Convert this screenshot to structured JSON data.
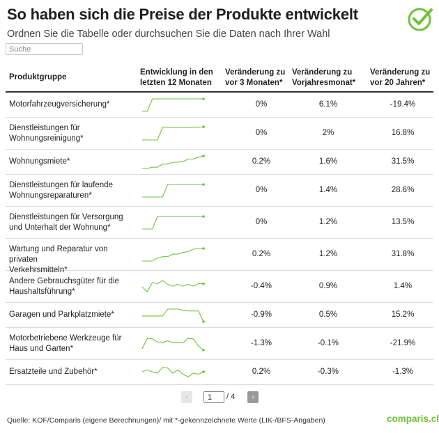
{
  "header": {
    "title": "So haben sich die Preise der Produkte entwickelt",
    "subtitle": "Ordnen Sie die Tabelle oder durchsuchen Sie die Daten nach Ihrer Wahl",
    "logo_icon": "checkmark-circle-icon",
    "accent_color": "#6fc13a"
  },
  "search": {
    "placeholder": "Suche",
    "value": ""
  },
  "table": {
    "columns": [
      {
        "line1": "Produktgruppe",
        "line2": ""
      },
      {
        "line1": "Entwicklung in den",
        "line2": "letzten 12 Monaten"
      },
      {
        "line1": "Veränderung zu",
        "line2": "vor 3 Monaten*"
      },
      {
        "line1": "Veränderung zu",
        "line2": "Vorjahresmonat*"
      },
      {
        "line1": "Veränderung zu",
        "line2": "vor 20 Jahren*"
      }
    ],
    "rows": [
      {
        "name1": "Motorfahrzeugversicherung*",
        "name2": "",
        "m3": "0%",
        "yoy": "6.1%",
        "y20": "-19.4%",
        "trend": [
          0,
          0,
          1,
          1,
          1,
          1,
          1,
          1,
          1,
          1,
          1,
          1,
          1
        ]
      },
      {
        "name1": "Dienstleistungen für",
        "name2": "Wohnungsreinigung*",
        "m3": "0%",
        "yoy": "2%",
        "y20": "16.8%",
        "trend": [
          0,
          0,
          0,
          0,
          1,
          1,
          1,
          1,
          1,
          1,
          1,
          1,
          1.05
        ]
      },
      {
        "name1": "Wohnungsmiete*",
        "name2": "",
        "m3": "0.2%",
        "yoy": "1.6%",
        "y20": "31.5%",
        "trend": [
          0,
          0,
          0.1,
          0.1,
          0.35,
          0.35,
          0.5,
          0.5,
          0.55,
          0.75,
          0.75,
          0.9,
          1
        ]
      },
      {
        "name1": "Dienstleistungen für laufende",
        "name2": "Wohnungsreparaturen*",
        "m3": "0%",
        "yoy": "1.4%",
        "y20": "28.6%",
        "trend": [
          0,
          0,
          0,
          0,
          0,
          1,
          1,
          1,
          1,
          1,
          1,
          1,
          1
        ]
      },
      {
        "name1": "Dienstleistungen für Versorgung",
        "name2": "und Unterhalt der Wohnung*",
        "m3": "0%",
        "yoy": "1.2%",
        "y20": "13.5%",
        "trend": [
          0,
          0,
          0,
          1,
          1,
          1,
          1,
          1,
          1,
          1,
          1,
          1,
          1
        ]
      },
      {
        "name1": "Wartung und Reparatur von privaten",
        "name2": "Verkehrsmitteln*",
        "m3": "0.2%",
        "yoy": "1.2%",
        "y20": "31.8%",
        "trend": [
          0,
          0,
          0,
          0.25,
          0.35,
          0.35,
          0.55,
          0.55,
          0.7,
          0.75,
          0.95,
          1,
          1
        ]
      },
      {
        "name1": "Andere Gebrauchsgüter für die",
        "name2": "Haushaltsführung*",
        "m3": "-0.4%",
        "yoy": "0.9%",
        "y20": "1.4%",
        "trend": [
          0.5,
          0.1,
          0.85,
          0.75,
          1,
          0.7,
          0.55,
          0.7,
          0.55,
          0.7,
          0.55,
          0.75,
          0.75
        ]
      },
      {
        "name1": "Garagen und Parkplatzmiete*",
        "name2": "",
        "m3": "-0.9%",
        "yoy": "0.5%",
        "y20": "15.2%",
        "trend": [
          0.45,
          0.45,
          0.45,
          0.45,
          0.45,
          1,
          1,
          1,
          0.9,
          0.85,
          0.85,
          0.85,
          0
        ]
      },
      {
        "name1": "Motorbetriebene Werkzeuge für",
        "name2": "Haus und Garten*",
        "m3": "-1.3%",
        "yoy": "-0.1%",
        "y20": "-21.9%",
        "trend": [
          0.1,
          0.95,
          0.9,
          0.65,
          0.6,
          0.75,
          0.6,
          0.65,
          0.6,
          0.95,
          0.9,
          0.35,
          0
        ]
      },
      {
        "name1": "Ersatzteile und Zubehör*",
        "name2": "",
        "m3": "0.2%",
        "yoy": "-0.3%",
        "y20": "-1.3%",
        "trend": [
          0.55,
          0.7,
          0.55,
          0.45,
          0.9,
          0.85,
          0.45,
          0.7,
          0.35,
          0.15,
          0.45,
          0.35,
          0.55
        ]
      }
    ]
  },
  "pagination": {
    "prev_icon": "chevron-left-icon",
    "next_icon": "chevron-right-icon",
    "current": "1",
    "total": "/ 4"
  },
  "footer": {
    "source": "Quelle: KOF/Comparis (eigene Berechnungen)/ mit *-gekennzeichnete Werte (LIK-/BFS-Angaben)",
    "brand": "comparis.ch"
  }
}
